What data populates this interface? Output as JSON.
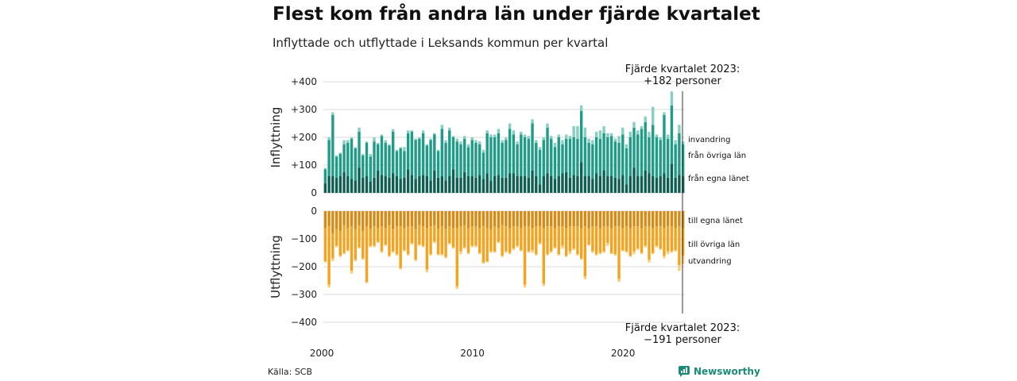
{
  "title": "Flest kom från andra län under fjärde kvartalet",
  "subtitle": "Inflyttade och utflyttade i Leksands kommun per kvartal",
  "source": "Källa: SCB",
  "brand": "Newsworthy",
  "colors": {
    "in_own_county": "#0e5f52",
    "in_other_counties": "#1f9c88",
    "in_immigration": "#86d0c3",
    "out_own_county": "#d98a12",
    "out_other_counties": "#f6a21d",
    "out_emigration": "#fbcd7c",
    "brand": "#1b8a79"
  },
  "annotation_top": [
    "Fjärde kvartalet 2023:",
    "+182 personer"
  ],
  "annotation_bottom": [
    "Fjärde kvartalet 2023:",
    "−191 personer"
  ],
  "chart_data": {
    "type": "bar",
    "stacked": true,
    "x_start": "2000 Q1",
    "x_end": "2023 Q4",
    "x_ticks": [
      "2000",
      "2010",
      "2020"
    ],
    "panels": [
      {
        "ylabel": "Inflyttning",
        "ylim": [
          0,
          400
        ],
        "yticks": [
          "0",
          "+100",
          "+200",
          "+300",
          "+400"
        ],
        "series": [
          {
            "name": "från egna länet",
            "color_key": "in_own_county",
            "values": [
              35,
              60,
              60,
              55,
              60,
              75,
              60,
              50,
              45,
              90,
              55,
              60,
              40,
              55,
              80,
              65,
              60,
              55,
              70,
              60,
              50,
              55,
              85,
              65,
              50,
              60,
              65,
              60,
              45,
              80,
              55,
              60,
              45,
              60,
              85,
              55,
              55,
              75,
              60,
              60,
              55,
              65,
              50,
              70,
              45,
              60,
              65,
              55,
              55,
              70,
              70,
              60,
              60,
              60,
              55,
              80,
              60,
              30,
              60,
              70,
              60,
              50,
              60,
              70,
              75,
              55,
              65,
              60,
              110,
              60,
              60,
              50,
              70,
              60,
              80,
              60,
              60,
              55,
              50,
              65,
              30,
              60,
              90,
              60,
              60,
              80,
              70,
              60,
              55,
              60,
              70,
              55,
              105,
              55,
              65,
              60
            ]
          },
          {
            "name": "från övriga län",
            "color_key": "in_other_counties",
            "values": [
              50,
              130,
              220,
              75,
              80,
              100,
              120,
              145,
              115,
              130,
              80,
              120,
              90,
              130,
              95,
              140,
              120,
              115,
              150,
              90,
              110,
              95,
              130,
              155,
              140,
              135,
              150,
              110,
              145,
              130,
              95,
              170,
              135,
              165,
              115,
              130,
              120,
              120,
              105,
              130,
              125,
              110,
              95,
              145,
              155,
              140,
              150,
              125,
              135,
              160,
              140,
              115,
              150,
              140,
              140,
              170,
              120,
              125,
              130,
              165,
              135,
              115,
              140,
              105,
              120,
              140,
              135,
              135,
              185,
              140,
              120,
              125,
              130,
              135,
              135,
              140,
              145,
              130,
              130,
              145,
              130,
              140,
              145,
              150,
              170,
              175,
              130,
              185,
              145,
              130,
              210,
              140,
              210,
              120,
              150,
              115
            ]
          },
          {
            "name": "invandring",
            "color_key": "in_immigration",
            "values": [
              5,
              10,
              10,
              5,
              5,
              15,
              10,
              5,
              5,
              15,
              5,
              5,
              10,
              15,
              5,
              5,
              10,
              5,
              10,
              5,
              5,
              15,
              10,
              5,
              5,
              5,
              10,
              5,
              5,
              5,
              5,
              15,
              10,
              10,
              5,
              10,
              10,
              10,
              10,
              10,
              10,
              10,
              10,
              10,
              10,
              10,
              15,
              10,
              10,
              20,
              15,
              10,
              10,
              10,
              10,
              15,
              10,
              10,
              10,
              15,
              10,
              15,
              10,
              15,
              15,
              10,
              40,
              45,
              20,
              35,
              15,
              15,
              20,
              30,
              25,
              15,
              10,
              10,
              25,
              25,
              15,
              20,
              20,
              15,
              10,
              20,
              20,
              65,
              10,
              10,
              10,
              15,
              50,
              15,
              30,
              10
            ]
          }
        ]
      },
      {
        "ylabel": "Utflyttning",
        "ylim": [
          -400,
          0
        ],
        "yticks": [
          "0",
          "−100",
          "−200",
          "−300",
          "−400"
        ],
        "series": [
          {
            "name": "till egna länet",
            "color_key": "out_own_county",
            "values": [
              -60,
              -55,
              -80,
              -65,
              -70,
              -50,
              -60,
              -55,
              -65,
              -50,
              -70,
              -55,
              -65,
              -55,
              -60,
              -55,
              -60,
              -50,
              -65,
              -55,
              -55,
              -60,
              -55,
              -55,
              -65,
              -50,
              -55,
              -60,
              -55,
              -50,
              -65,
              -55,
              -65,
              -55,
              -60,
              -60,
              -55,
              -50,
              -60,
              -55,
              -55,
              -60,
              -55,
              -60,
              -65,
              -55,
              -60,
              -50,
              -55,
              -60,
              -55,
              -55,
              -60,
              -55,
              -55,
              -60,
              -55,
              -55,
              -60,
              -55,
              -55,
              -60,
              -55,
              -55,
              -60,
              -55,
              -55,
              -55,
              -60,
              -55,
              -60,
              -55,
              -55,
              -60,
              -55,
              -55,
              -60,
              -55,
              -55,
              -60,
              -55,
              -60,
              -55,
              -55,
              -60,
              -55,
              -55,
              -60,
              -55,
              -55,
              -60,
              -55,
              -55,
              -60,
              -55,
              -60
            ]
          },
          {
            "name": "till övriga län",
            "color_key": "out_other_counties",
            "values": [
              -120,
              -210,
              -90,
              -60,
              -90,
              -100,
              -80,
              -160,
              -110,
              -80,
              -100,
              -200,
              -60,
              -70,
              -50,
              -90,
              -60,
              -110,
              -80,
              -100,
              -150,
              -80,
              -100,
              -60,
              -110,
              -70,
              -70,
              -150,
              -100,
              -60,
              -90,
              -100,
              -100,
              -60,
              -70,
              -210,
              -90,
              -80,
              -90,
              -70,
              -70,
              -90,
              -130,
              -120,
              -80,
              -90,
              -50,
              -110,
              -90,
              -90,
              -80,
              -70,
              -80,
              -210,
              -90,
              -80,
              -100,
              -60,
              -200,
              -100,
              -90,
              -70,
              -100,
              -70,
              -100,
              -90,
              -80,
              -100,
              -110,
              -180,
              -60,
              -90,
              -100,
              -90,
              -90,
              -60,
              -90,
              -100,
              -190,
              -80,
              -90,
              -100,
              -90,
              -80,
              -90,
              -70,
              -120,
              -90,
              -70,
              -80,
              -100,
              -90,
              -90,
              -80,
              -140,
              -100
            ]
          },
          {
            "name": "utvandring",
            "color_key": "out_emigration",
            "values": [
              -5,
              -10,
              -10,
              -5,
              -5,
              -5,
              -5,
              -10,
              -5,
              -5,
              -5,
              -5,
              -5,
              -5,
              -5,
              -5,
              -5,
              -5,
              -5,
              -5,
              -5,
              -5,
              -5,
              -5,
              -5,
              -5,
              -5,
              -10,
              -5,
              -5,
              -5,
              -5,
              -5,
              -5,
              -5,
              -10,
              -10,
              -5,
              -5,
              -5,
              -5,
              -5,
              -5,
              -5,
              -5,
              -5,
              -5,
              -5,
              -5,
              -5,
              -5,
              -5,
              -5,
              -10,
              -5,
              -10,
              -5,
              -5,
              -10,
              -5,
              -5,
              -5,
              -5,
              -10,
              -5,
              -10,
              -5,
              -5,
              -5,
              -10,
              -5,
              -5,
              -5,
              -5,
              -5,
              -10,
              -5,
              -5,
              -10,
              -5,
              -5,
              -5,
              -10,
              -5,
              -5,
              -5,
              -10,
              -5,
              -5,
              -5,
              -10,
              -10,
              -5,
              -5,
              -20,
              -30
            ]
          }
        ]
      }
    ]
  }
}
